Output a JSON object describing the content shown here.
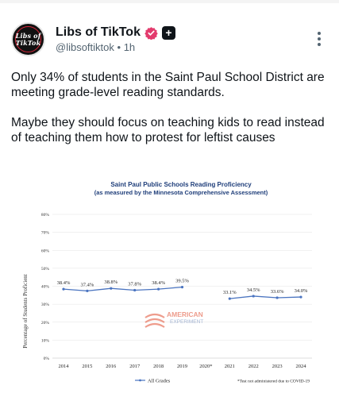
{
  "post": {
    "author": {
      "display_name": "Libs of TikTok",
      "handle": "@libsoftiktok",
      "time": "1h",
      "separator": "•",
      "avatar_text_line1": "Libs of",
      "avatar_text_line2": "TikTok",
      "verified_icon": "verified-badge-icon",
      "plus_icon": "plus-icon"
    },
    "more_icon": "more-vertical-icon",
    "text_paragraph_1": "Only 34% of students in the Saint Paul School District are meeting grade-level reading standards.",
    "text_paragraph_2": "Maybe they should focus on teaching kids to read instead of teaching them how to protest for leftist causes"
  },
  "colors": {
    "verified": "#e33b6d",
    "chart_line": "#4a74c0",
    "chart_title": "#1f3e7a",
    "watermark_red": "#e25a3f",
    "watermark_blue": "#8fa3c8"
  },
  "watermark": {
    "line1": "AMERICAN",
    "line2": "EXPERIMENT"
  },
  "chart_data": {
    "type": "line",
    "title": "Saint Paul Public Schools Reading Proficiency",
    "subtitle": "(as measured by the Minnesota Comprehensive Assessment)",
    "ylabel": "Percentage of Students Proficient",
    "xlabel": "",
    "ylim": [
      0,
      80
    ],
    "yticks": [
      "0%",
      "10%",
      "20%",
      "30%",
      "40%",
      "50%",
      "60%",
      "70%",
      "80%"
    ],
    "categories": [
      "2014",
      "2015",
      "2016",
      "2017",
      "2018",
      "2019",
      "2020*",
      "2021",
      "2022",
      "2023",
      "2024"
    ],
    "series": [
      {
        "name": "All Grades",
        "values": [
          38.4,
          37.4,
          38.8,
          37.8,
          38.4,
          39.5,
          null,
          33.1,
          34.5,
          33.6,
          34.0
        ],
        "labels": [
          "38.4%",
          "37.4%",
          "38.8%",
          "37.8%",
          "38.4%",
          "39.5%",
          "",
          "33.1%",
          "34.5%",
          "33.6%",
          "34.0%"
        ]
      }
    ],
    "grid": true,
    "legend": "bottom-center",
    "footnote": "*Test not administered due to COVID-19"
  }
}
